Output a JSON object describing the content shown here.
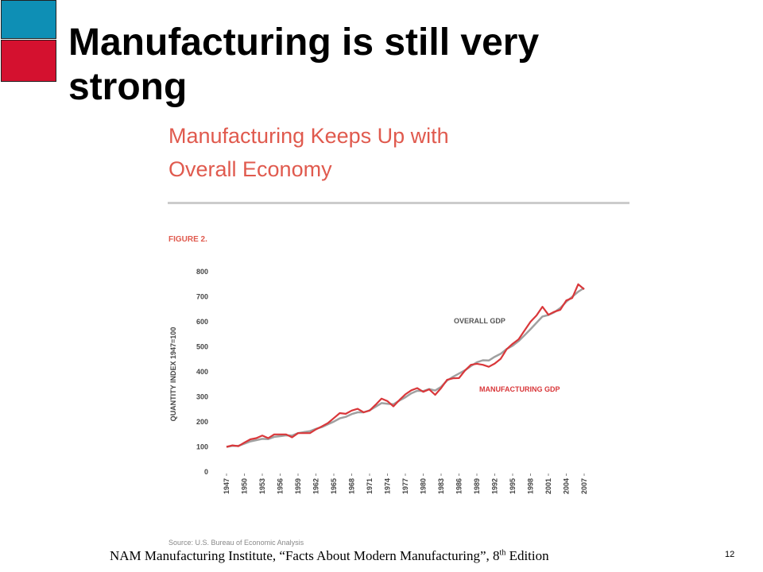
{
  "slide_title": "Manufacturing is still very strong",
  "footer": {
    "before": "NAM Manufacturing Institute, “Facts About Modern Manufacturing”, 8",
    "superscript": "th",
    "after": " Edition"
  },
  "page_number": "12",
  "chart_data": {
    "type": "line",
    "title": "Manufacturing Keeps Up with Overall Economy",
    "figure_label": "FIGURE 2.",
    "ylabel": "QUANTITY INDEX 1947=100",
    "source": "Source: U.S. Bureau of Economic Analysis",
    "x": [
      1947,
      1948,
      1949,
      1950,
      1951,
      1952,
      1953,
      1954,
      1955,
      1956,
      1957,
      1958,
      1959,
      1960,
      1961,
      1962,
      1963,
      1964,
      1965,
      1966,
      1967,
      1968,
      1969,
      1970,
      1971,
      1972,
      1973,
      1974,
      1975,
      1976,
      1977,
      1978,
      1979,
      1980,
      1981,
      1982,
      1983,
      1984,
      1985,
      1986,
      1987,
      1988,
      1989,
      1990,
      1991,
      1992,
      1993,
      1994,
      1995,
      1996,
      1997,
      1998,
      1999,
      2000,
      2001,
      2002,
      2003,
      2004,
      2005,
      2006,
      2007
    ],
    "xlim": [
      1947,
      2007
    ],
    "xticks": [
      1947,
      1950,
      1953,
      1956,
      1959,
      1962,
      1965,
      1968,
      1971,
      1974,
      1977,
      1980,
      1983,
      1986,
      1989,
      1992,
      1995,
      1998,
      2001,
      2004,
      2007
    ],
    "ylim": [
      0,
      800
    ],
    "yticks": [
      0,
      100,
      200,
      300,
      400,
      500,
      600,
      700,
      800
    ],
    "grid": false,
    "series": [
      {
        "name": "OVERALL GDP",
        "color": "#a0a0a0",
        "values": [
          100,
          104,
          104,
          113,
          122,
          127,
          132,
          131,
          140,
          143,
          146,
          145,
          155,
          159,
          163,
          172,
          179,
          190,
          201,
          214,
          220,
          231,
          238,
          238,
          246,
          260,
          275,
          272,
          270,
          285,
          298,
          314,
          324,
          323,
          331,
          325,
          340,
          365,
          380,
          393,
          406,
          423,
          438,
          446,
          445,
          460,
          472,
          491,
          504,
          523,
          546,
          570,
          596,
          621,
          627,
          638,
          655,
          680,
          700,
          720,
          735
        ]
      },
      {
        "name": "MANUFACTURING GDP",
        "color": "#d9373a",
        "values": [
          100,
          106,
          103,
          117,
          130,
          135,
          145,
          135,
          150,
          150,
          150,
          138,
          155,
          155,
          155,
          170,
          182,
          195,
          215,
          235,
          232,
          245,
          252,
          238,
          245,
          268,
          293,
          283,
          262,
          287,
          310,
          326,
          335,
          320,
          330,
          308,
          335,
          368,
          374,
          375,
          405,
          428,
          432,
          428,
          420,
          433,
          452,
          490,
          512,
          530,
          565,
          600,
          625,
          660,
          628,
          640,
          648,
          685,
          695,
          750,
          730
        ]
      }
    ]
  }
}
